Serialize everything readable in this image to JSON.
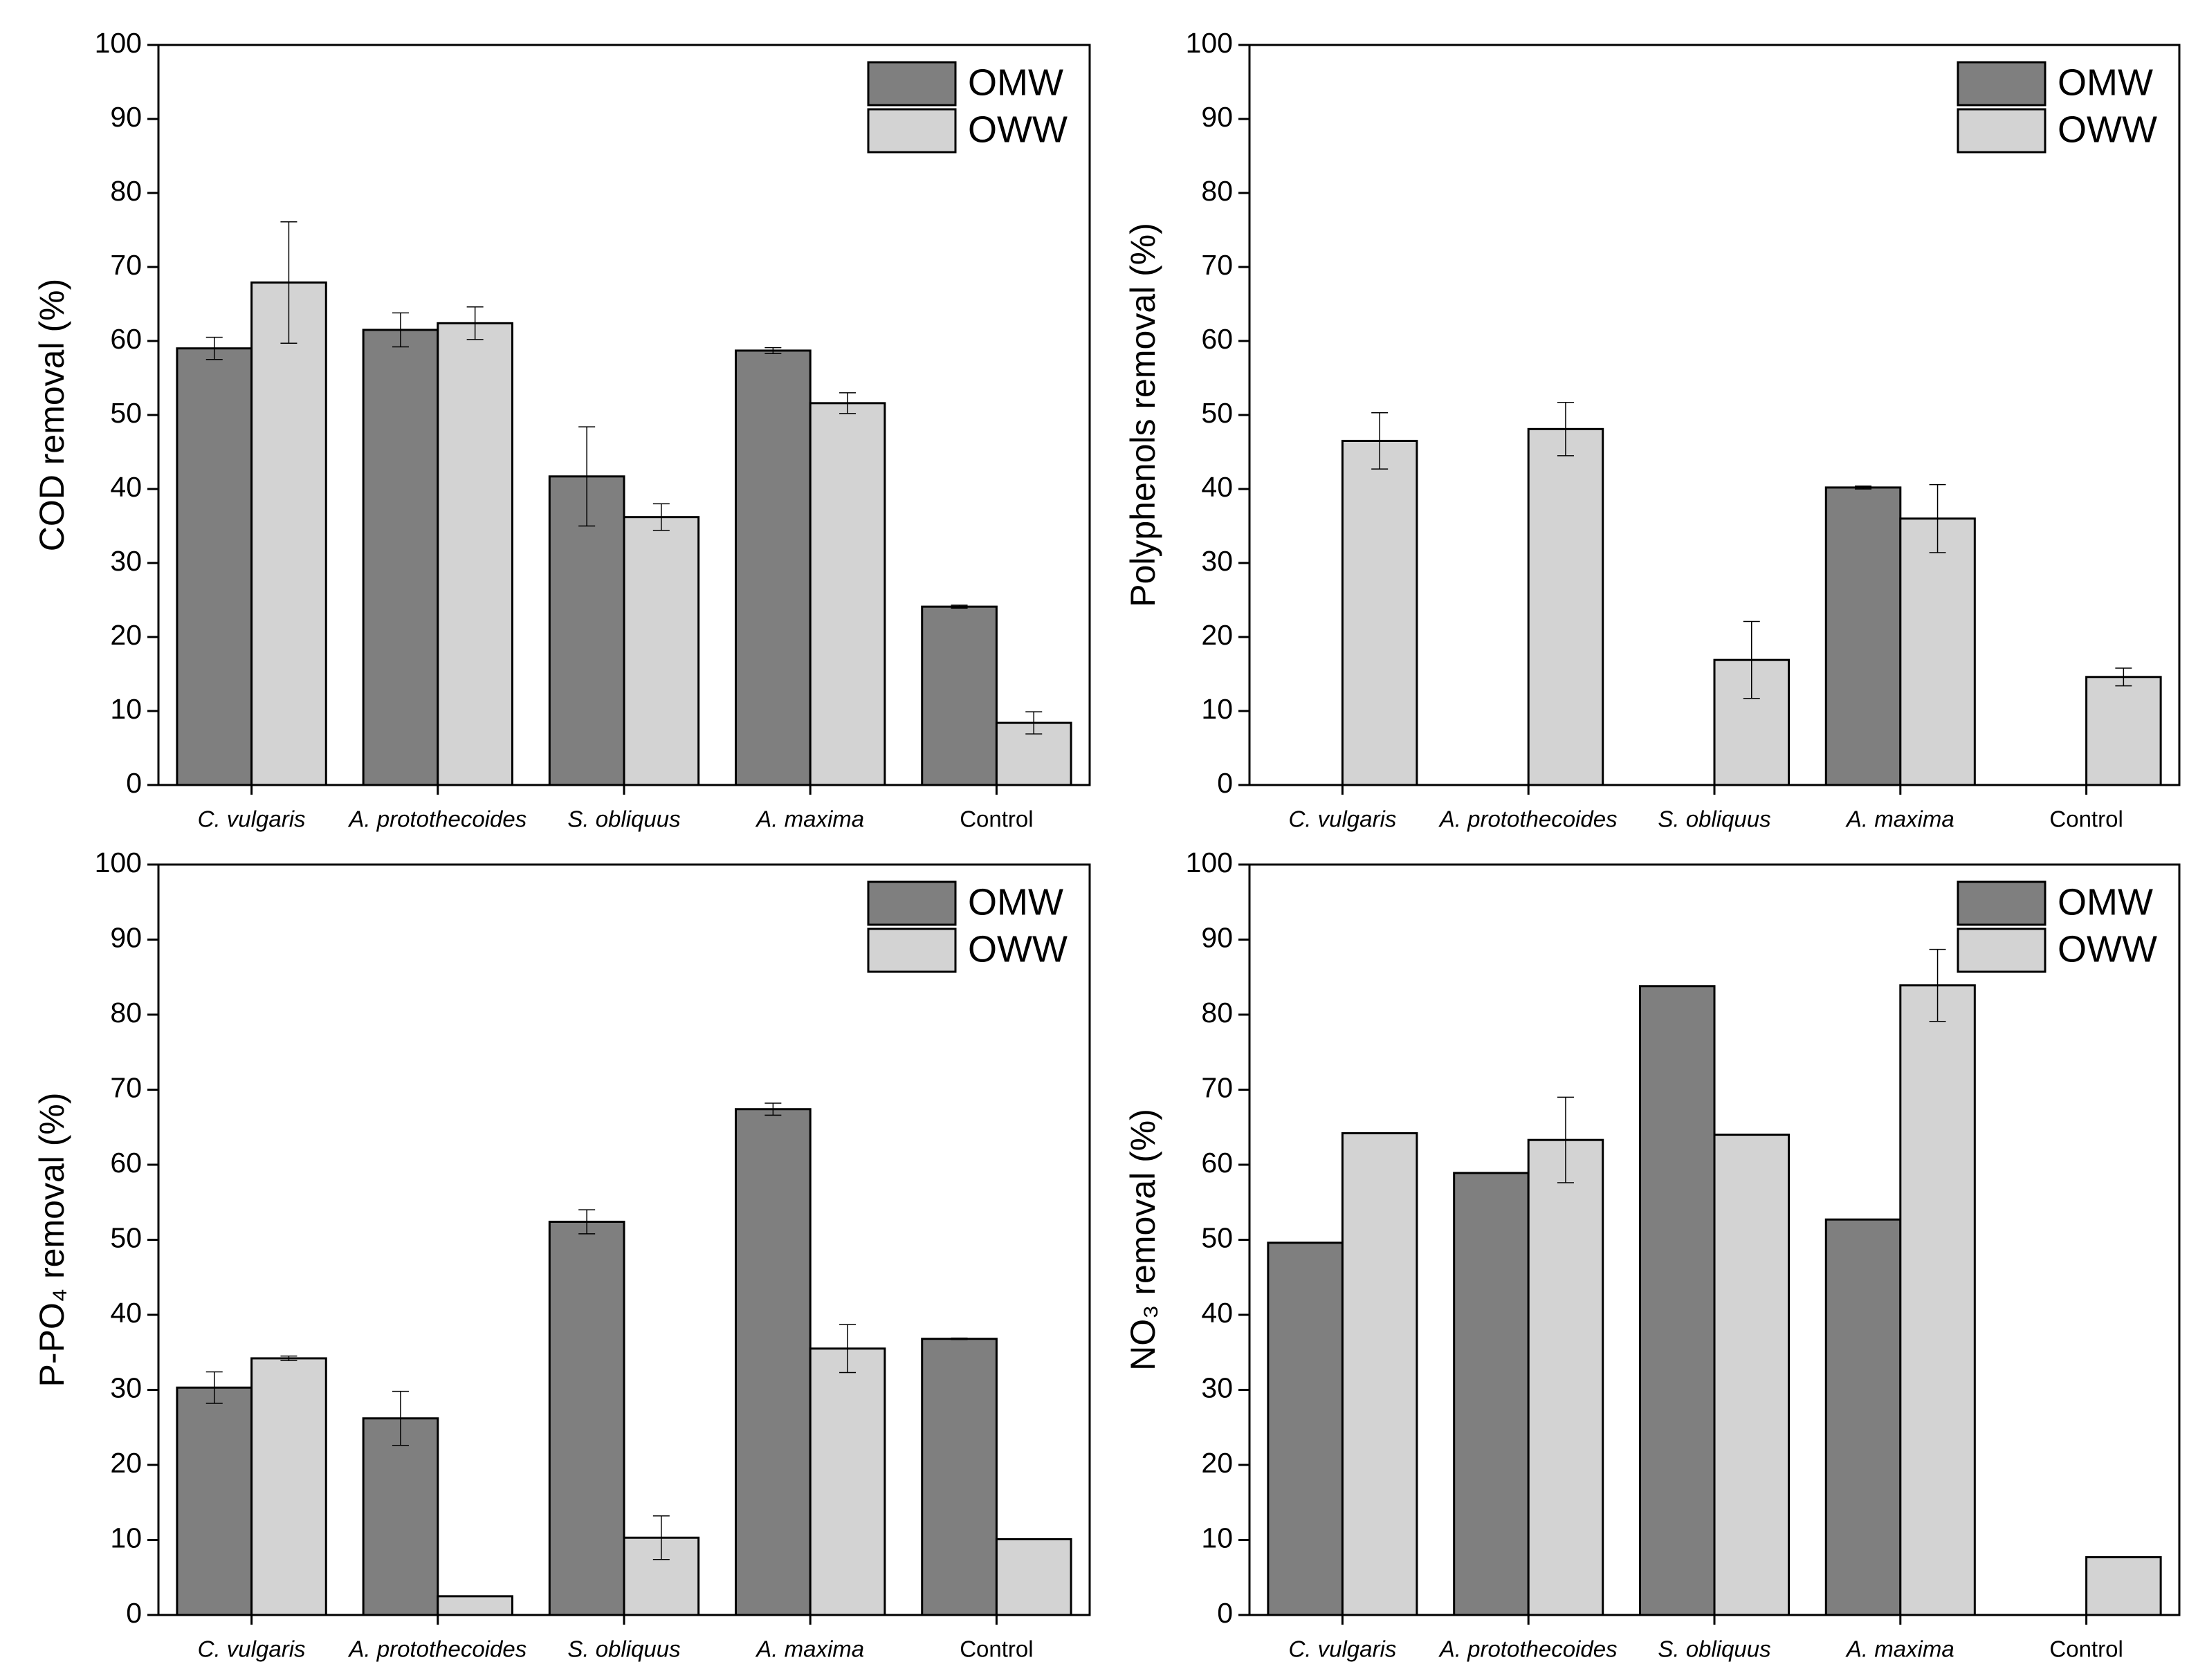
{
  "chart_data": [
    {
      "type": "bar",
      "ylabel": "COD removal (%)",
      "categories": [
        "C. vulgaris",
        "A. protothecoides",
        "S. obliquus",
        "A. maxima",
        "Control"
      ],
      "series": [
        {
          "name": "OMW",
          "color": "#7f7f7f",
          "values": [
            59,
            61.5,
            41.7,
            58.7,
            24.1
          ],
          "errors": [
            1.5,
            2.3,
            6.7,
            0.4,
            0.2
          ]
        },
        {
          "name": "OWW",
          "color": "#d3d3d3",
          "values": [
            67.9,
            62.4,
            36.2,
            51.6,
            8.4
          ],
          "errors": [
            8.2,
            2.2,
            1.8,
            1.4,
            1.5
          ]
        }
      ],
      "ylim": [
        0,
        100
      ],
      "yticks": [
        0,
        10,
        20,
        30,
        40,
        50,
        60,
        70,
        80,
        90,
        100
      ],
      "legend": "upper right"
    },
    {
      "type": "bar",
      "ylabel": "Polyphenols removal (%)",
      "categories": [
        "C. vulgaris",
        "A. protothecoides",
        "S. obliquus",
        "A. maxima",
        "Control"
      ],
      "series": [
        {
          "name": "OMW",
          "color": "#7f7f7f",
          "values": [
            null,
            null,
            null,
            40.2,
            null
          ],
          "errors": [
            null,
            null,
            null,
            0.2,
            null
          ]
        },
        {
          "name": "OWW",
          "color": "#d3d3d3",
          "values": [
            46.5,
            48.1,
            16.9,
            36,
            14.6
          ],
          "errors": [
            3.8,
            3.6,
            5.2,
            4.6,
            1.2
          ]
        }
      ],
      "ylim": [
        0,
        100
      ],
      "yticks": [
        0,
        10,
        20,
        30,
        40,
        50,
        60,
        70,
        80,
        90,
        100
      ],
      "legend": "upper right"
    },
    {
      "type": "bar",
      "ylabel": "P-PO₄ removal (%)",
      "categories": [
        "C. vulgaris",
        "A. protothecoides",
        "S. obliquus",
        "A. maxima",
        "Control"
      ],
      "series": [
        {
          "name": "OMW",
          "color": "#7f7f7f",
          "values": [
            30.3,
            26.2,
            52.4,
            67.4,
            36.8
          ],
          "errors": [
            2.1,
            3.6,
            1.6,
            0.8,
            0.1
          ]
        },
        {
          "name": "OWW",
          "color": "#d3d3d3",
          "values": [
            34.2,
            2.5,
            10.3,
            35.5,
            10.1
          ],
          "errors": [
            0.3,
            null,
            2.9,
            3.2,
            null
          ]
        }
      ],
      "ylim": [
        0,
        100
      ],
      "yticks": [
        0,
        10,
        20,
        30,
        40,
        50,
        60,
        70,
        80,
        90,
        100
      ],
      "legend": "upper right"
    },
    {
      "type": "bar",
      "ylabel": "NO₃ removal (%)",
      "categories": [
        "C. vulgaris",
        "A. protothecoides",
        "S. obliquus",
        "A. maxima",
        "Control"
      ],
      "series": [
        {
          "name": "OMW",
          "color": "#7f7f7f",
          "values": [
            49.6,
            58.9,
            83.8,
            52.7,
            null
          ],
          "errors": [
            null,
            null,
            null,
            null,
            null
          ]
        },
        {
          "name": "OWW",
          "color": "#d3d3d3",
          "values": [
            64.2,
            63.3,
            64,
            83.9,
            7.7
          ],
          "errors": [
            null,
            5.7,
            null,
            4.8,
            null
          ]
        }
      ],
      "ylim": [
        0,
        100
      ],
      "yticks": [
        0,
        10,
        20,
        30,
        40,
        50,
        60,
        70,
        80,
        90,
        100
      ],
      "legend": "upper right"
    }
  ]
}
